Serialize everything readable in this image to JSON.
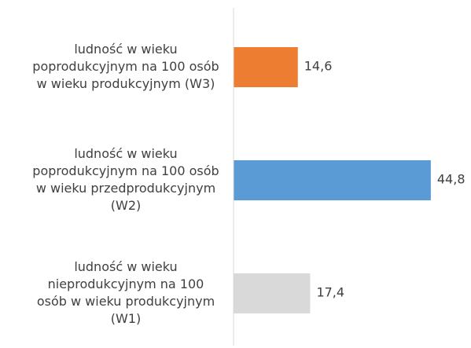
{
  "chart_data": {
    "type": "barh",
    "categories": [
      "ludność w wieku poprodukcyjnym na 100 osób w wieku produkcyjnym (W3)",
      "ludność w wieku poprodukcyjnym na 100 osób w wieku przedprodukcyjnym (W2)",
      "ludność w wieku nieprodukcyjnym na 100 osób w wieku produkcyjnym (W1)"
    ],
    "values": [
      14.6,
      44.8,
      17.4
    ],
    "value_labels": [
      "14,6",
      "44,8",
      "17,4"
    ],
    "colors": [
      "#ed7d31",
      "#5b9bd5",
      "#d9d9d9"
    ],
    "xlim": [
      0,
      50
    ]
  }
}
